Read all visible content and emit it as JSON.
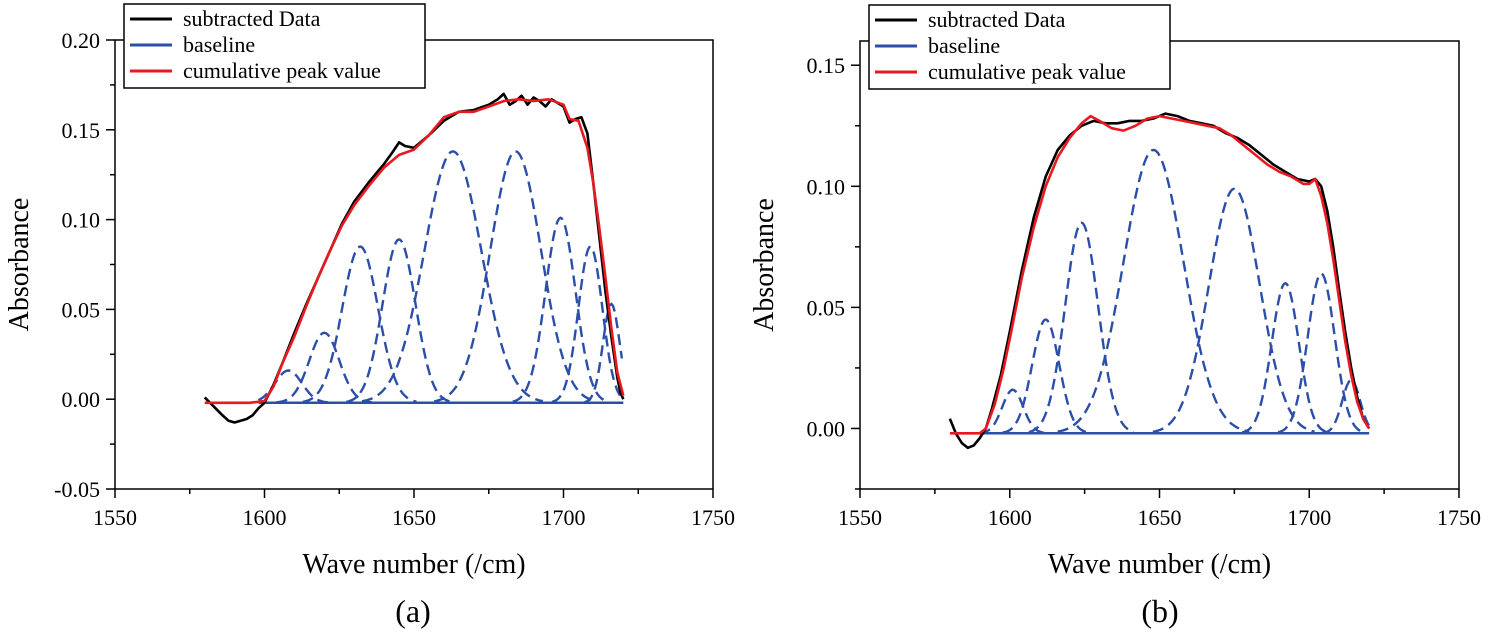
{
  "chart_data": [
    {
      "type": "line",
      "caption": "(a)",
      "xlabel": "Wave number (/cm)",
      "ylabel": "Absorbance",
      "xlim": [
        1550,
        1750
      ],
      "ylim": [
        -0.05,
        0.2
      ],
      "xticks": [
        1550,
        1600,
        1650,
        1700,
        1750
      ],
      "yticks": [
        -0.05,
        0.0,
        0.05,
        0.1,
        0.15,
        0.2
      ],
      "ytick_labels": [
        "-0.05",
        "0.00",
        "0.05",
        "0.10",
        "0.15",
        "0.20"
      ],
      "grid": false,
      "legend_position": "top-left",
      "legend": [
        {
          "label": "subtracted Data",
          "color": "#000000",
          "style": "solid"
        },
        {
          "label": "baseline",
          "color": "#2b4ea8",
          "style": "solid"
        },
        {
          "label": "cumulative peak value",
          "color": "#e8191f",
          "style": "solid"
        }
      ],
      "baseline": {
        "x": [
          1598,
          1720
        ],
        "y": [
          -0.002,
          -0.002
        ]
      },
      "subtracted_data": {
        "x": [
          1580,
          1583,
          1586,
          1588,
          1590,
          1592,
          1594,
          1596,
          1598,
          1600,
          1603,
          1606,
          1610,
          1614,
          1618,
          1622,
          1626,
          1630,
          1635,
          1640,
          1643,
          1645,
          1647,
          1650,
          1655,
          1660,
          1665,
          1670,
          1675,
          1678,
          1680,
          1682,
          1684,
          1686,
          1688,
          1690,
          1692,
          1694,
          1696,
          1698,
          1700,
          1702,
          1704,
          1706,
          1708,
          1710,
          1712,
          1714,
          1716,
          1718,
          1719,
          1720
        ],
        "y": [
          0.001,
          -0.004,
          -0.009,
          -0.012,
          -0.013,
          -0.012,
          -0.011,
          -0.009,
          -0.005,
          -0.002,
          0.008,
          0.02,
          0.037,
          0.053,
          0.068,
          0.083,
          0.098,
          0.11,
          0.121,
          0.131,
          0.138,
          0.143,
          0.141,
          0.14,
          0.147,
          0.155,
          0.16,
          0.161,
          0.164,
          0.167,
          0.17,
          0.164,
          0.166,
          0.169,
          0.164,
          0.168,
          0.166,
          0.163,
          0.167,
          0.165,
          0.163,
          0.154,
          0.156,
          0.157,
          0.148,
          0.12,
          0.09,
          0.06,
          0.035,
          0.012,
          0.004,
          0.0
        ]
      },
      "cumulative_peak": {
        "x": [
          1580,
          1595,
          1600,
          1603,
          1606,
          1610,
          1614,
          1618,
          1622,
          1626,
          1630,
          1635,
          1640,
          1645,
          1650,
          1655,
          1660,
          1665,
          1670,
          1675,
          1680,
          1685,
          1690,
          1695,
          1700,
          1702,
          1705,
          1708,
          1710,
          1712,
          1714,
          1716,
          1718,
          1720
        ],
        "y": [
          -0.002,
          -0.002,
          -0.001,
          0.007,
          0.02,
          0.035,
          0.052,
          0.068,
          0.083,
          0.097,
          0.108,
          0.119,
          0.129,
          0.136,
          0.139,
          0.147,
          0.157,
          0.16,
          0.16,
          0.163,
          0.166,
          0.167,
          0.166,
          0.167,
          0.164,
          0.156,
          0.155,
          0.14,
          0.12,
          0.095,
          0.068,
          0.04,
          0.015,
          0.002
        ]
      },
      "peaks": [
        {
          "center": 1608,
          "height": 0.018,
          "sigma": 4.5
        },
        {
          "center": 1620,
          "height": 0.039,
          "sigma": 5.0
        },
        {
          "center": 1632,
          "height": 0.087,
          "sigma": 6.0
        },
        {
          "center": 1645,
          "height": 0.091,
          "sigma": 5.5
        },
        {
          "center": 1663,
          "height": 0.14,
          "sigma": 9.5
        },
        {
          "center": 1684,
          "height": 0.14,
          "sigma": 8.5
        },
        {
          "center": 1699,
          "height": 0.103,
          "sigma": 5.0
        },
        {
          "center": 1709,
          "height": 0.087,
          "sigma": 4.0
        },
        {
          "center": 1716,
          "height": 0.055,
          "sigma": 2.8
        }
      ]
    },
    {
      "type": "line",
      "caption": "(b)",
      "xlabel": "Wave number (/cm)",
      "ylabel": "Absorbance",
      "xlim": [
        1550,
        1750
      ],
      "ylim": [
        -0.025,
        0.16
      ],
      "xticks": [
        1550,
        1600,
        1650,
        1700,
        1750
      ],
      "yticks": [
        0.0,
        0.05,
        0.1,
        0.15
      ],
      "ytick_labels": [
        "0.00",
        "0.05",
        "0.10",
        "0.15"
      ],
      "grid": false,
      "legend_position": "top-left",
      "legend": [
        {
          "label": "subtracted Data",
          "color": "#000000",
          "style": "solid"
        },
        {
          "label": "baseline",
          "color": "#2b4ea8",
          "style": "solid"
        },
        {
          "label": "cumulative peak value",
          "color": "#e8191f",
          "style": "solid"
        }
      ],
      "baseline": {
        "x": [
          1590,
          1720
        ],
        "y": [
          -0.002,
          -0.002
        ]
      },
      "subtracted_data": {
        "x": [
          1580,
          1582,
          1584,
          1586,
          1588,
          1590,
          1592,
          1594,
          1597,
          1600,
          1604,
          1608,
          1612,
          1616,
          1620,
          1624,
          1628,
          1632,
          1636,
          1640,
          1644,
          1648,
          1652,
          1656,
          1660,
          1664,
          1668,
          1672,
          1676,
          1680,
          1684,
          1688,
          1692,
          1696,
          1700,
          1702,
          1704,
          1706,
          1708,
          1710,
          1712,
          1714,
          1716,
          1718,
          1720
        ],
        "y": [
          0.004,
          -0.002,
          -0.006,
          -0.008,
          -0.007,
          -0.004,
          0.0,
          0.008,
          0.022,
          0.04,
          0.065,
          0.087,
          0.104,
          0.115,
          0.121,
          0.125,
          0.127,
          0.126,
          0.126,
          0.127,
          0.127,
          0.128,
          0.13,
          0.129,
          0.127,
          0.126,
          0.125,
          0.122,
          0.12,
          0.117,
          0.113,
          0.109,
          0.106,
          0.103,
          0.102,
          0.103,
          0.1,
          0.09,
          0.075,
          0.057,
          0.04,
          0.025,
          0.013,
          0.004,
          0.0
        ]
      },
      "cumulative_peak": {
        "x": [
          1580,
          1590,
          1592,
          1595,
          1598,
          1601,
          1604,
          1608,
          1612,
          1616,
          1620,
          1624,
          1627,
          1630,
          1634,
          1638,
          1642,
          1646,
          1650,
          1654,
          1658,
          1662,
          1666,
          1670,
          1674,
          1678,
          1682,
          1686,
          1690,
          1694,
          1698,
          1700,
          1702,
          1704,
          1706,
          1708,
          1710,
          1712,
          1714,
          1716,
          1718,
          1720
        ],
        "y": [
          -0.002,
          -0.002,
          0.0,
          0.01,
          0.025,
          0.043,
          0.062,
          0.083,
          0.1,
          0.112,
          0.12,
          0.126,
          0.129,
          0.127,
          0.124,
          0.123,
          0.125,
          0.128,
          0.129,
          0.128,
          0.127,
          0.126,
          0.125,
          0.124,
          0.121,
          0.117,
          0.113,
          0.109,
          0.106,
          0.104,
          0.101,
          0.101,
          0.103,
          0.096,
          0.085,
          0.07,
          0.053,
          0.036,
          0.022,
          0.011,
          0.004,
          0.0
        ]
      },
      "peaks": [
        {
          "center": 1601,
          "height": 0.018,
          "sigma": 3.5
        },
        {
          "center": 1612,
          "height": 0.047,
          "sigma": 4.5
        },
        {
          "center": 1624,
          "height": 0.087,
          "sigma": 5.5
        },
        {
          "center": 1648,
          "height": 0.117,
          "sigma": 10.0
        },
        {
          "center": 1675,
          "height": 0.101,
          "sigma": 8.5
        },
        {
          "center": 1692,
          "height": 0.062,
          "sigma": 4.5
        },
        {
          "center": 1704,
          "height": 0.066,
          "sigma": 4.5
        },
        {
          "center": 1714,
          "height": 0.022,
          "sigma": 3.0
        }
      ]
    }
  ]
}
